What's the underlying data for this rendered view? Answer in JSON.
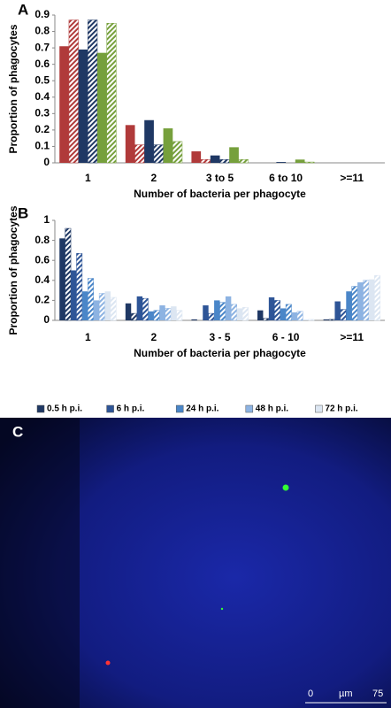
{
  "chart_data": [
    {
      "type": "bar",
      "panel_label": "A",
      "y_label": "Proportion of phagocytes",
      "x_label": "Number of bacteria per phagocyte",
      "categories": [
        "1",
        "2",
        "3 to 5",
        "6 to 10",
        ">=11"
      ],
      "series": [
        {
          "color": "#b03a3a",
          "pattern": "solid",
          "values": [
            0.71,
            0.23,
            0.07,
            0,
            0
          ]
        },
        {
          "color": "#b03a3a",
          "pattern": "hatched",
          "values": [
            0.87,
            0.11,
            0.02,
            0,
            0
          ]
        },
        {
          "color": "#1f3864",
          "pattern": "solid",
          "values": [
            0.69,
            0.26,
            0.045,
            0.005,
            0
          ]
        },
        {
          "color": "#1f3864",
          "pattern": "hatched",
          "values": [
            0.87,
            0.11,
            0.02,
            0,
            0
          ]
        },
        {
          "color": "#76a03c",
          "pattern": "solid",
          "values": [
            0.67,
            0.21,
            0.095,
            0.02,
            0
          ]
        },
        {
          "color": "#76a03c",
          "pattern": "hatched",
          "values": [
            0.85,
            0.13,
            0.02,
            0.005,
            0
          ]
        }
      ],
      "ylim": [
        0,
        0.9
      ],
      "yticks": [
        0,
        0.1,
        0.2,
        0.3,
        0.4,
        0.5,
        0.6,
        0.7,
        0.8,
        0.9
      ]
    },
    {
      "type": "bar",
      "panel_label": "B",
      "y_label": "Proportion of phagocytes",
      "x_label": "Number of bacteria per phagocyte",
      "categories": [
        "1",
        "2",
        "3 - 5",
        "6 - 10",
        ">=11"
      ],
      "series": [
        {
          "name": "0.5 h p.i.",
          "color": "#1f3864",
          "pattern": "solid",
          "values": [
            0.82,
            0.17,
            0.01,
            0.1,
            0.01
          ]
        },
        {
          "color": "#1f3864",
          "pattern": "hatched",
          "values": [
            0.92,
            0.07,
            0,
            0.02,
            0.01
          ]
        },
        {
          "name": "6 h p.i.",
          "color": "#2e5597",
          "pattern": "solid",
          "values": [
            0.5,
            0.24,
            0.15,
            0.23,
            0.19
          ]
        },
        {
          "color": "#2e5597",
          "pattern": "hatched",
          "values": [
            0.67,
            0.22,
            0.07,
            0.2,
            0.11
          ]
        },
        {
          "name": "24 h p.i.",
          "color": "#4a86c8",
          "pattern": "solid",
          "values": [
            0.29,
            0.09,
            0.2,
            0.12,
            0.29
          ]
        },
        {
          "color": "#4a86c8",
          "pattern": "hatched",
          "values": [
            0.42,
            0.1,
            0.18,
            0.16,
            0.34
          ]
        },
        {
          "name": "48 h p.i.",
          "color": "#8db3e2",
          "pattern": "solid",
          "values": [
            0.2,
            0.15,
            0.24,
            0.08,
            0.38
          ]
        },
        {
          "color": "#8db3e2",
          "pattern": "hatched",
          "values": [
            0.27,
            0.12,
            0.16,
            0.09,
            0.4
          ]
        },
        {
          "name": "72 h p.i.",
          "color": "#dce6f2",
          "pattern": "solid",
          "values": [
            0.29,
            0.14,
            0.12,
            0.01,
            0.41
          ]
        },
        {
          "color": "#dce6f2",
          "pattern": "hatched",
          "values": [
            0.23,
            0.1,
            0.13,
            0.01,
            0.45
          ]
        }
      ],
      "ylim": [
        0,
        1
      ],
      "yticks": [
        0,
        0.2,
        0.4,
        0.6,
        0.8,
        1
      ],
      "legend": "bottom"
    }
  ],
  "image": {
    "panel_label": "C",
    "scale_bar": [
      "0",
      "µm",
      "75"
    ]
  }
}
